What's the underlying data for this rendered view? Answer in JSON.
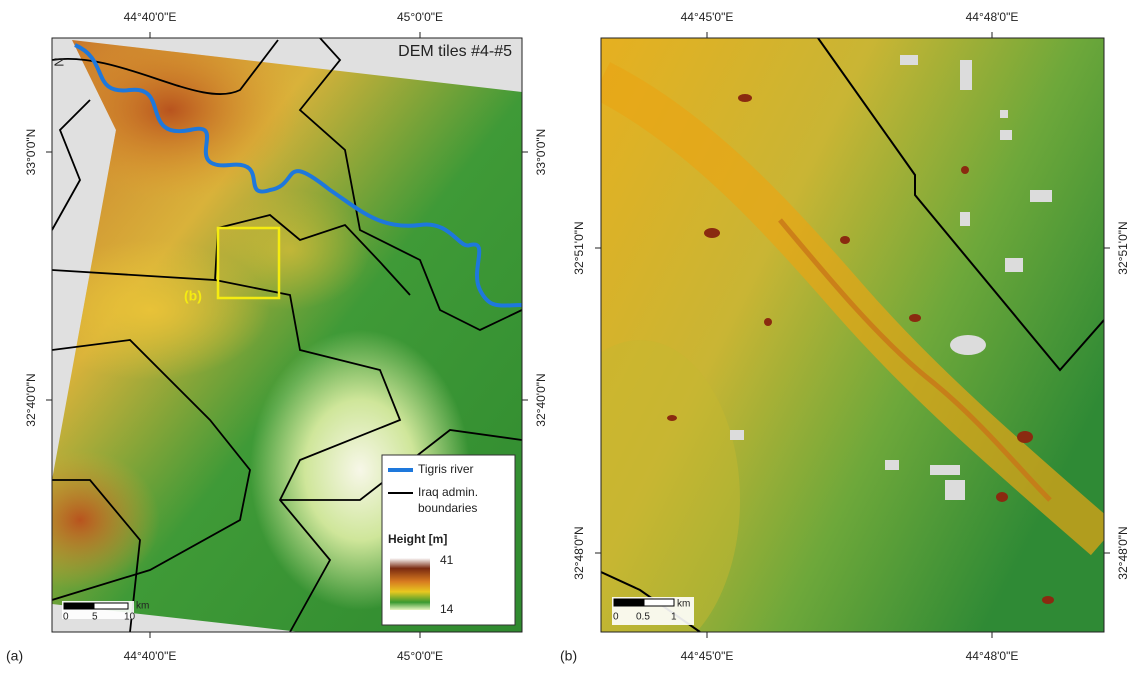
{
  "panel_a": {
    "label": "(a)",
    "title": "DEM tiles #4-#5",
    "top_ticks": [
      "44°40'0\"E",
      "45°0'0\"E"
    ],
    "bottom_ticks": [
      "44°40'0\"E",
      "45°0'0\"E"
    ],
    "left_ticks": [
      "33°0'0\"N",
      "32°40'0\"N"
    ],
    "right_ticks": [
      "33°0'0\"N",
      "32°40'0\"N"
    ],
    "north": "N",
    "inset_label": "(b)",
    "legend": {
      "river": "Tigris river",
      "boundaries": [
        "Iraq admin.",
        "boundaries"
      ],
      "height_title": "Height [m]",
      "height_max": 41,
      "height_min": 14
    },
    "scale_bar": {
      "unit": "km",
      "ticks": [
        0,
        5,
        10
      ]
    }
  },
  "panel_b": {
    "label": "(b)",
    "top_ticks": [
      "44°45'0\"E",
      "44°48'0\"E"
    ],
    "bottom_ticks": [
      "44°45'0\"E",
      "44°48'0\"E"
    ],
    "left_ticks": [
      "32°51'0\"N",
      "32°48'0\"N"
    ],
    "right_ticks": [
      "32°51'0\"N",
      "32°48'0\"N"
    ],
    "scale_bar": {
      "unit": "km",
      "ticks": [
        0,
        0.5,
        1
      ]
    }
  }
}
